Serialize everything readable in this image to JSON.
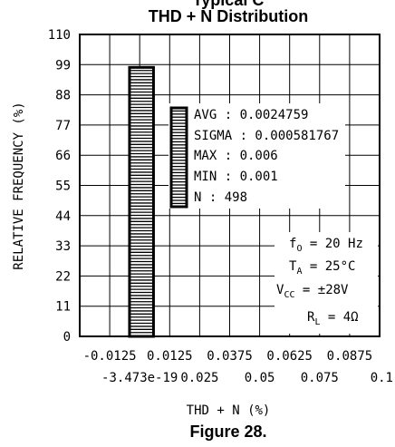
{
  "chart_data": {
    "type": "bar",
    "top_title_fragment": "Typical C",
    "title": "THD + N Distribution",
    "xlabel": "THD + N (%)",
    "ylabel": "RELATIVE FREQUENCY (%)",
    "caption": "Figure 28.",
    "xlim": [
      -0.025,
      0.1
    ],
    "ylim": [
      0,
      110
    ],
    "y_ticks": [
      "0",
      "11",
      "22",
      "33",
      "44",
      "55",
      "66",
      "77",
      "88",
      "99",
      "110"
    ],
    "x_ticks_upper": [
      "-0.0125",
      "0.0125",
      "0.0375",
      "0.0625",
      "0.0875"
    ],
    "x_ticks_lower": [
      "-3.473e-19",
      "0.025",
      "0.05",
      "0.075",
      "0.1"
    ],
    "grid": true,
    "bars": [
      {
        "x": 0.0,
        "width": 0.005,
        "value": 98
      }
    ],
    "stats_legend": [
      "AVG : 0.0024759",
      "SIGMA : 0.000581767",
      "MAX : 0.006",
      "MIN : 0.001",
      "N : 498"
    ],
    "conditions": {
      "f0": {
        "symbol": "f",
        "sub": "O",
        "rest": " = 20 Hz"
      },
      "ta": {
        "symbol": "T",
        "sub": "A",
        "rest": " = 25°C"
      },
      "vcc": {
        "symbol": "V",
        "sub": "CC",
        "rest": " = ±28V"
      },
      "rl": {
        "symbol": "R",
        "sub": "L",
        "rest": " = 4Ω"
      }
    }
  }
}
